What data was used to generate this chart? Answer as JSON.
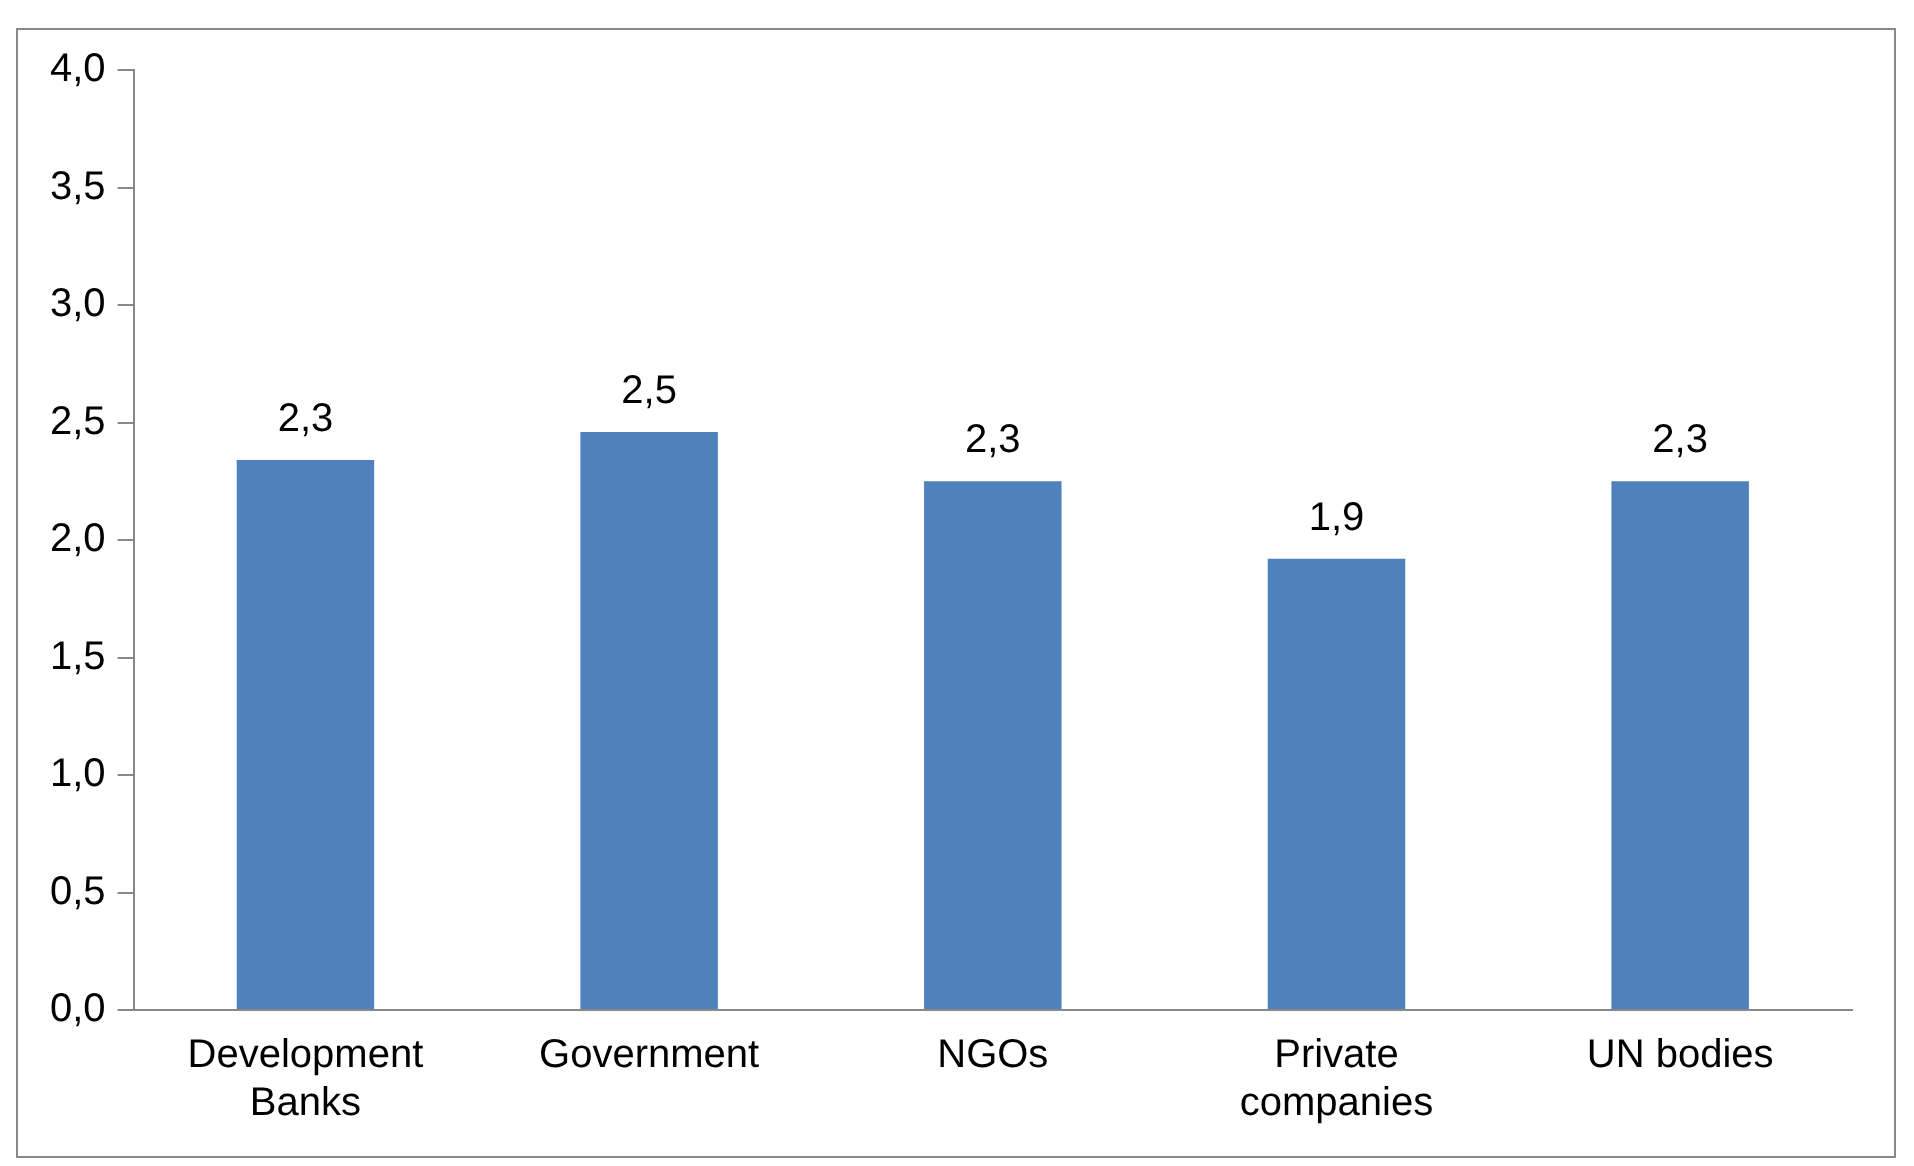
{
  "chart_data": {
    "type": "bar",
    "categories": [
      "Development Banks",
      "Government",
      "NGOs",
      "Private companies",
      "UN bodies"
    ],
    "values": [
      2.34,
      2.46,
      2.25,
      1.92,
      2.25
    ],
    "value_labels": [
      "2,3",
      "2,5",
      "2,3",
      "1,9",
      "2,3"
    ],
    "color": "#4f81bd",
    "ylim": [
      0,
      4
    ],
    "yticks": [
      {
        "value": 0,
        "label": "0,0"
      },
      {
        "value": 0.5,
        "label": "0,5"
      },
      {
        "value": 1,
        "label": "1,0"
      },
      {
        "value": 1.5,
        "label": "1,5"
      },
      {
        "value": 2,
        "label": "2,0"
      },
      {
        "value": 2.5,
        "label": "2,5"
      },
      {
        "value": 3,
        "label": "3,0"
      },
      {
        "value": 3.5,
        "label": "3,5"
      },
      {
        "value": 4,
        "label": "4,0"
      }
    ],
    "grid": false,
    "legend": false
  }
}
